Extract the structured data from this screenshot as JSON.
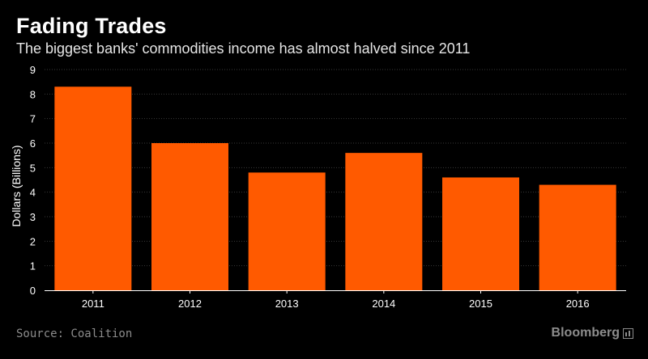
{
  "header": {
    "title": "Fading Trades",
    "subtitle": "The biggest banks' commodities income has almost halved since 2011"
  },
  "footer": {
    "source": "Source: Coalition",
    "brand": "Bloomberg"
  },
  "colors": {
    "bar": "#ff5a00",
    "background": "#000000",
    "grid": "#3a3a3a",
    "text": "#ffffff",
    "muted": "#8c8c8c"
  },
  "chart_data": {
    "type": "bar",
    "title": "Fading Trades",
    "subtitle": "The biggest banks' commodities income has almost halved since 2011",
    "categories": [
      "2011",
      "2012",
      "2013",
      "2014",
      "2015",
      "2016"
    ],
    "values": [
      8.3,
      6.0,
      4.8,
      5.6,
      4.6,
      4.3
    ],
    "xlabel": "",
    "ylabel": "Dollars (Billions)",
    "ylim": [
      0,
      9
    ],
    "yticks": [
      "0",
      "1",
      "2",
      "3",
      "4",
      "5",
      "6",
      "7",
      "8",
      "9"
    ],
    "grid": "horizontal dashed",
    "legend": "none"
  }
}
